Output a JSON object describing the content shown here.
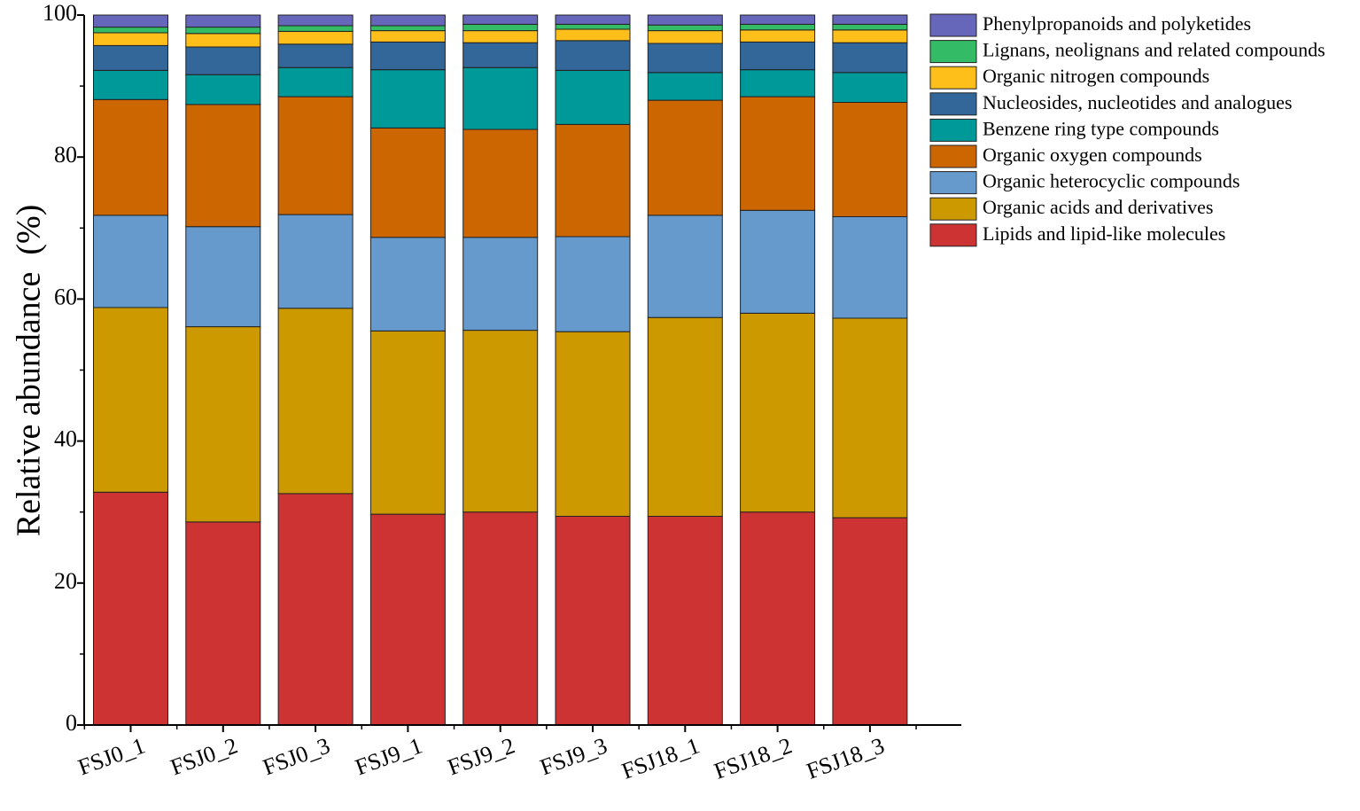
{
  "chart_data": {
    "type": "bar",
    "stacked": true,
    "title": "",
    "xlabel": "",
    "ylabel": "Relative abundance (%)",
    "ylim": [
      0,
      100
    ],
    "yticks": [
      0,
      20,
      40,
      60,
      80,
      100
    ],
    "grid": false,
    "legend_position": "top-right",
    "categories": [
      "FSJ0_1",
      "FSJ0_2",
      "FSJ0_3",
      "FSJ9_1",
      "FSJ9_2",
      "FSJ9_3",
      "FSJ18_1",
      "FSJ18_2",
      "FSJ18_3"
    ],
    "series": [
      {
        "name": "Lipids and lipid-like molecules",
        "color": "#CD3333",
        "values": [
          32.8,
          28.6,
          32.6,
          29.7,
          30.0,
          29.4,
          29.4,
          30.0,
          29.2
        ]
      },
      {
        "name": "Organic acids and derivatives",
        "color": "#CC9900",
        "values": [
          26.0,
          27.5,
          26.1,
          25.8,
          25.6,
          26.0,
          28.0,
          28.0,
          28.1
        ]
      },
      {
        "name": "Organic heterocyclic compounds",
        "color": "#6699CC",
        "values": [
          13.0,
          14.1,
          13.2,
          13.2,
          13.1,
          13.4,
          14.4,
          14.5,
          14.3
        ]
      },
      {
        "name": "Organic oxygen compounds",
        "color": "#CC6600",
        "values": [
          16.3,
          17.2,
          16.6,
          15.4,
          15.2,
          15.8,
          16.2,
          16.0,
          16.1
        ]
      },
      {
        "name": "Benzene ring type compounds",
        "color": "#009999",
        "values": [
          4.1,
          4.2,
          4.1,
          8.2,
          8.7,
          7.6,
          3.9,
          3.8,
          4.2
        ]
      },
      {
        "name": "Nucleosides, nucleotides and analogues",
        "color": "#336699",
        "values": [
          3.5,
          3.9,
          3.3,
          3.9,
          3.5,
          4.2,
          4.1,
          3.9,
          4.2
        ]
      },
      {
        "name": "Organic nitrogen compounds",
        "color": "#FFBF1A",
        "values": [
          1.8,
          1.9,
          1.8,
          1.6,
          1.7,
          1.6,
          1.8,
          1.7,
          1.8
        ]
      },
      {
        "name": "Lignans, neolignans and related compounds",
        "color": "#33BB66",
        "values": [
          0.8,
          0.9,
          0.8,
          0.7,
          0.9,
          0.7,
          0.8,
          0.8,
          0.8
        ]
      },
      {
        "name": "Phenylpropanoids and polyketides",
        "color": "#6666BB",
        "values": [
          1.7,
          1.7,
          1.5,
          1.5,
          1.3,
          1.3,
          1.4,
          1.3,
          1.3
        ]
      }
    ]
  }
}
